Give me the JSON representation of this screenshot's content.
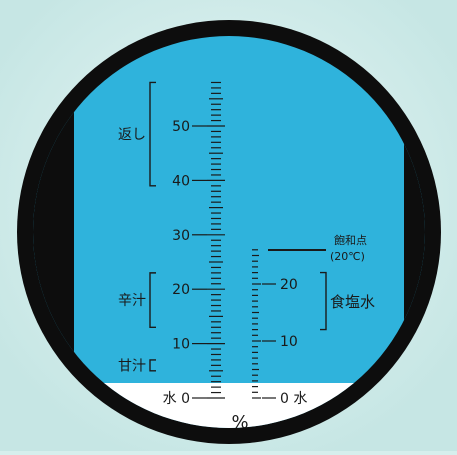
{
  "background_color": "#d6efed",
  "field_color": "#2fb3dc",
  "field_bottom_color": "#ffffff",
  "ring_color": "#0d0d0d",
  "scale_color": "#1a1a1a",
  "left_scale": {
    "labels": [
      {
        "value": 0,
        "text": "水 0"
      },
      {
        "value": 10,
        "text": "10"
      },
      {
        "value": 20,
        "text": "20"
      },
      {
        "value": 30,
        "text": "30"
      },
      {
        "value": 40,
        "text": "40"
      },
      {
        "value": 50,
        "text": "50"
      }
    ],
    "min": 0,
    "max": 58,
    "minor_step": 1
  },
  "right_scale": {
    "labels": [
      {
        "value": 0,
        "text": "0 水"
      },
      {
        "value": 10,
        "text": "10"
      },
      {
        "value": 20,
        "text": "20"
      }
    ],
    "min": 0,
    "max": 26,
    "minor_step": 1
  },
  "unit": "%",
  "left_ranges": [
    {
      "label": "返し",
      "from": 39,
      "to": 58
    },
    {
      "label": "辛汁",
      "from": 13,
      "to": 23
    },
    {
      "label": "甘汁",
      "from": 5,
      "to": 7
    }
  ],
  "right_range": {
    "label": "食塩水",
    "from": 12,
    "to": 22
  },
  "saturation": {
    "line1": "飽和点",
    "line2": "(20℃)",
    "value": 26
  }
}
